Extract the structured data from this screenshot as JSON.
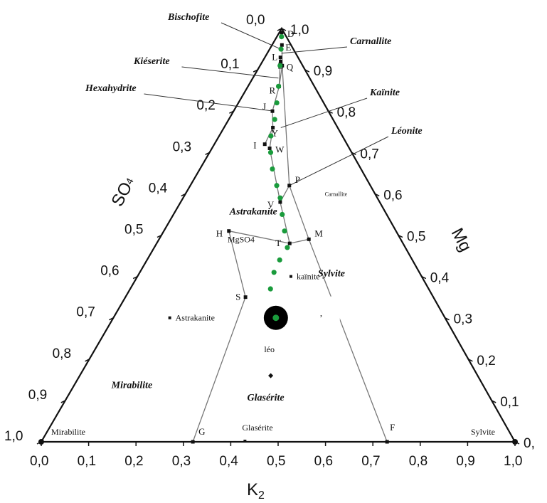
{
  "chart_data": {
    "type": "ternary",
    "title": "",
    "axes": {
      "bottom": {
        "title": "K2",
        "ticks": [
          "0,0",
          "0,1",
          "0,2",
          "0,3",
          "0,4",
          "0,5",
          "0,6",
          "0,7",
          "0,8",
          "0,9",
          "1,0"
        ]
      },
      "left": {
        "title": "SO4",
        "ticks": [
          "0,0",
          "0,1",
          "0,2",
          "0,3",
          "0,4",
          "0,5",
          "0,6",
          "0,7",
          "0,8",
          "0,9",
          "1,0"
        ]
      },
      "right": {
        "title": "Mg",
        "ticks": [
          "1,0",
          "0,9",
          "0,8",
          "0,7",
          "0,6",
          "0,5",
          "0,4",
          "0,3",
          "0,2",
          "0,1",
          "0,"
        ]
      }
    },
    "grid": false,
    "regions": [
      "Astrakanite",
      "Sylvite",
      "Mirabilite",
      "Glasérite"
    ],
    "mineral_labels": [
      "Bischofite",
      "Carnallite",
      "Kiéserite",
      "Hexahydrite",
      "Kaïnite",
      "Léonite"
    ],
    "points": [
      {
        "name": "L",
        "k": 0.47,
        "so4": 0.07
      },
      {
        "name": "D",
        "k": 0.5,
        "so4": 0.01
      },
      {
        "name": "Z",
        "k": 0.48,
        "so4": 0.08
      },
      {
        "name": "E",
        "k": 0.52,
        "so4": 0.04
      },
      {
        "name": "R",
        "k": 0.47,
        "so4": 0.14
      },
      {
        "name": "Q",
        "k": 0.52,
        "so4": 0.09
      },
      {
        "name": "J",
        "k": 0.41,
        "so4": 0.2
      },
      {
        "name": "Y",
        "k": 0.43,
        "so4": 0.24
      },
      {
        "name": "I",
        "k": 0.38,
        "so4": 0.28
      },
      {
        "name": "W",
        "k": 0.42,
        "so4": 0.29
      },
      {
        "name": "P",
        "k": 0.55,
        "so4": 0.38
      },
      {
        "name": "V",
        "k": 0.5,
        "so4": 0.42
      },
      {
        "name": "M",
        "k": 0.62,
        "so4": 0.51
      },
      {
        "name": "T",
        "k": 0.54,
        "so4": 0.52
      },
      {
        "name": "H",
        "k": 0.28,
        "so4": 0.49
      },
      {
        "name": "S",
        "k": 0.39,
        "so4": 0.65
      },
      {
        "name": "G",
        "k": 0.32,
        "so4": 1.0
      },
      {
        "name": "F",
        "k": 0.73,
        "so4": 1.0
      }
    ],
    "point_annotations": [
      {
        "text": "MgSO4",
        "k": 0.26,
        "so4": 0.51
      },
      {
        "text": "Astrakanite",
        "k": 0.17,
        "so4": 0.7
      },
      {
        "text": "kaïnite",
        "k": 0.54,
        "so4": 0.6
      },
      {
        "text": "Carnallite",
        "k": 0.72,
        "so4": 0.4
      },
      {
        "text": "Mirabilite",
        "k": 0.0,
        "so4": 1.0
      },
      {
        "text": "Glasérite",
        "k": 0.43,
        "so4": 1.0
      },
      {
        "text": "Sylvite",
        "k": 1.0,
        "so4": 1.0
      },
      {
        "text": "léo",
        "k": 0.48,
        "so4": 0.8
      }
    ],
    "path_dotted": [
      [
        0.49,
        0.02
      ],
      [
        0.48,
        0.05
      ],
      [
        0.47,
        0.09
      ],
      [
        0.46,
        0.14
      ],
      [
        0.45,
        0.18
      ],
      [
        0.44,
        0.22
      ],
      [
        0.42,
        0.26
      ],
      [
        0.43,
        0.3
      ],
      [
        0.45,
        0.34
      ],
      [
        0.48,
        0.38
      ],
      [
        0.5,
        0.41
      ],
      [
        0.51,
        0.45
      ],
      [
        0.52,
        0.49
      ],
      [
        0.53,
        0.53
      ],
      [
        0.5,
        0.56
      ],
      [
        0.48,
        0.59
      ],
      [
        0.47,
        0.63
      ],
      [
        0.48,
        0.66
      ]
    ],
    "end_marker": {
      "k": 0.49,
      "so4": 0.7
    }
  },
  "stray_mark": ","
}
